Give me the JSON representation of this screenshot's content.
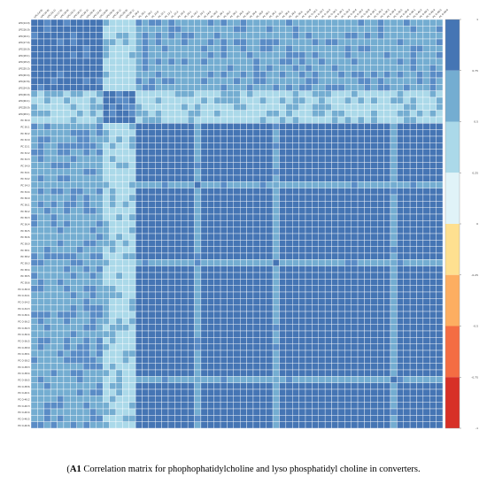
{
  "caption": {
    "label": "A1",
    "text": " Correlation matrix for phophophatidylcholine and lyso phosphatidyl choline in converters."
  },
  "chart_data": {
    "type": "heatmap",
    "title": "",
    "xlabel": "",
    "ylabel": "",
    "grid": true,
    "legend": "right",
    "labels": [
      "LPC(14:0)",
      "LPC(16:0)",
      "LPC(16:1)",
      "LPC(17:0)",
      "LPC(18:0)",
      "LPC(18:1)",
      "LPC(18:2)",
      "LPC(20:3)",
      "LPC(20:4)",
      "LPC(22:6)",
      "LPC(24:0)",
      "LPC(26:0)",
      "LPC(26:1)",
      "LPC(28:0)",
      "LPC(28:1)",
      "PC 30:0",
      "PC 30:1",
      "PC 30:2",
      "PC 32:0",
      "PC 32:1",
      "PC 32:2",
      "PC 32:3",
      "PC 34:0",
      "PC 34:1",
      "PC 34:2",
      "PC 34:3",
      "PC 34:4",
      "PC 36:0",
      "PC 36:1",
      "PC 36:2",
      "PC 36:3",
      "PC 36:4",
      "PC 36:5",
      "PC 36:6",
      "PC 38:0",
      "PC 38:1",
      "PC 38:2",
      "PC 38:3",
      "PC 38:4",
      "PC 38:5",
      "PC 38:6",
      "PC O-36:0",
      "PC O-34:1",
      "PC O-34:2",
      "PC O-34:3",
      "PC O-36:1",
      "PC O-36:2",
      "PC O-36:3",
      "PC O-36:4",
      "PC O-36:5",
      "PC O-38:0",
      "PC O-38:1",
      "PC O-38:2",
      "PC O-38:3",
      "PC O-38:4",
      "PC O-38:5",
      "PC O-38:6",
      "PC O-40:1",
      "PC O-40:2",
      "PC O-40:3",
      "PC O-40:4",
      "PC O-40:5",
      "PC O-40:6"
    ],
    "scale": {
      "ticks": [
        "1",
        "0.75",
        "0.5",
        "0.25",
        "0",
        "-0.25",
        "-0.5",
        "-0.75",
        "-1"
      ],
      "colors": [
        "#4575b4",
        "#74add1",
        "#abd9e9",
        "#e0f3f8",
        "#ffffff",
        "#fee090",
        "#fdae61",
        "#f46d43",
        "#d73027"
      ]
    },
    "light_blocks": {
      "lpc_group": [
        0,
        10
      ],
      "mid_group": [
        11,
        15
      ],
      "highlight_lines": [
        25,
        37,
        55
      ],
      "tail_group": [
        56,
        62
      ]
    }
  }
}
